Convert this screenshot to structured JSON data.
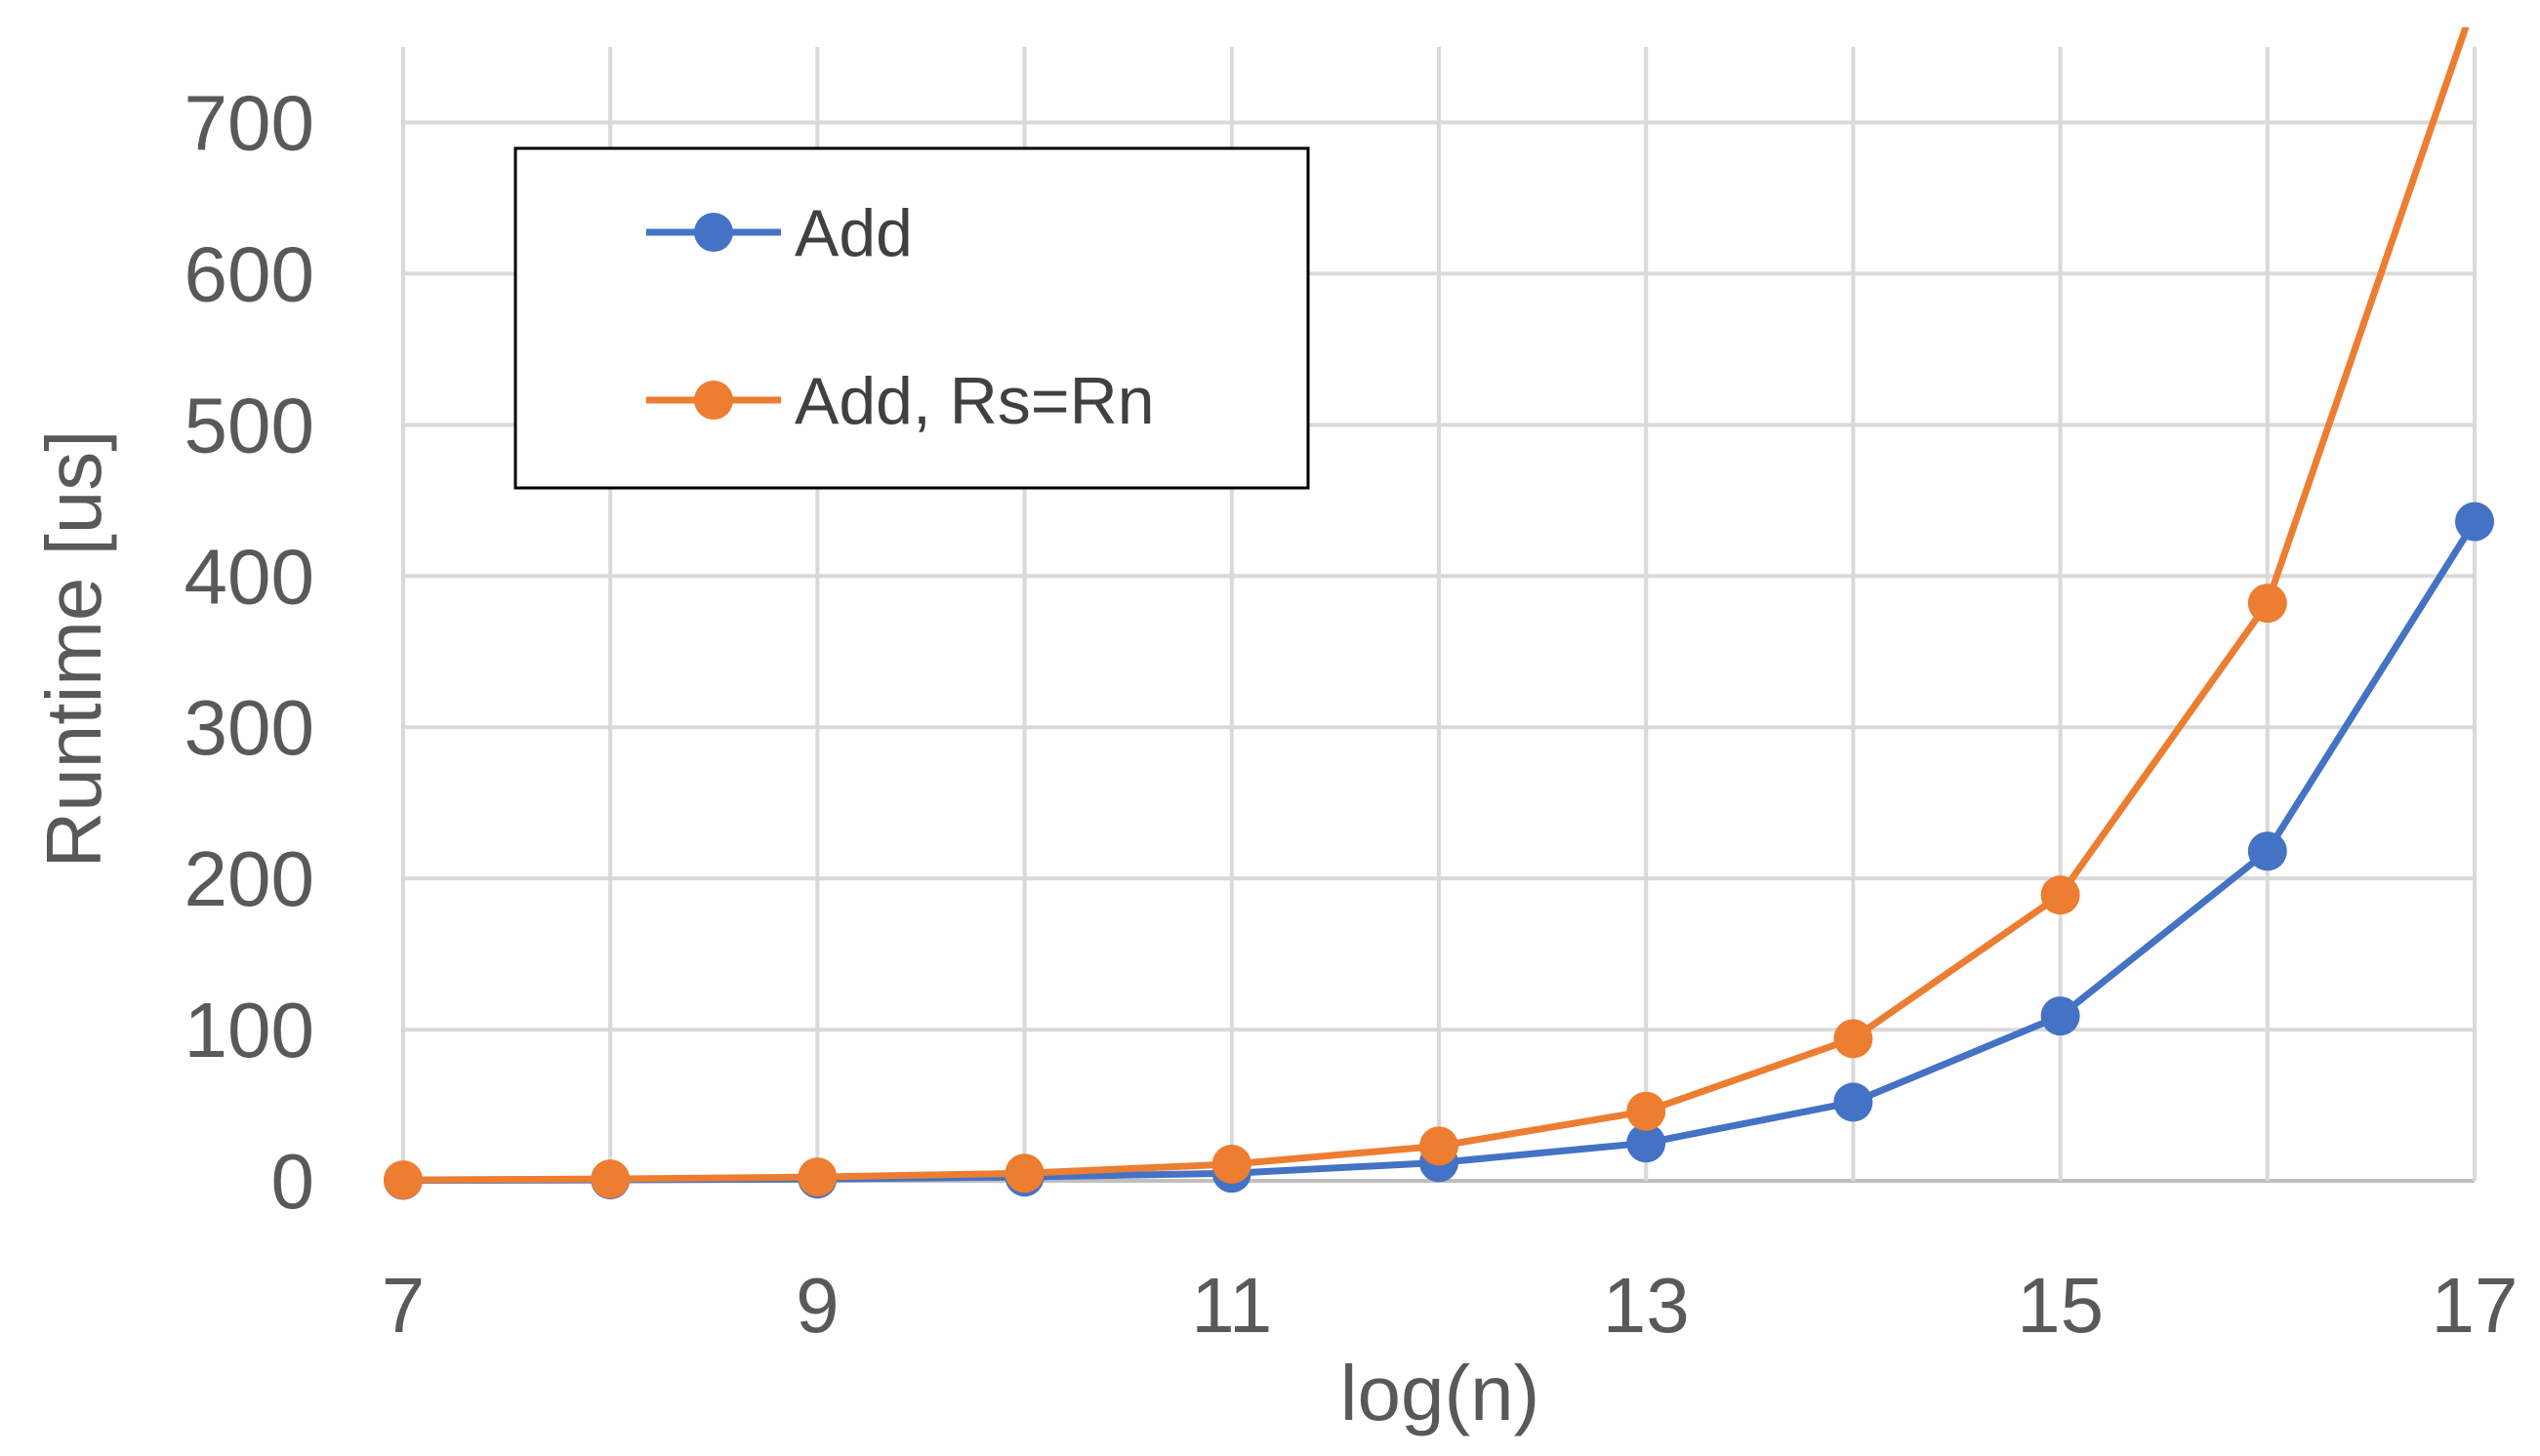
{
  "chart_data": {
    "type": "line",
    "title": "",
    "xlabel": "log(n)",
    "ylabel": "Runtime [us]",
    "x": [
      7,
      8,
      9,
      10,
      11,
      12,
      13,
      14,
      15,
      16,
      17
    ],
    "xlim": [
      7,
      17
    ],
    "ylim": [
      0,
      750
    ],
    "x_ticks": [
      7,
      9,
      11,
      13,
      15,
      17
    ],
    "y_ticks": [
      0,
      100,
      200,
      300,
      400,
      500,
      600,
      700
    ],
    "grid": true,
    "legend_position": "top-left",
    "legend_border": true,
    "series": [
      {
        "name": "Add",
        "color": "#4472C4",
        "marker": "circle",
        "values": [
          0.3,
          0.6,
          1.2,
          2.5,
          5,
          12,
          25,
          52,
          109,
          218,
          436
        ]
      },
      {
        "name": "Add, Rs=Rn",
        "color": "#ED7D31",
        "marker": "circle",
        "values": [
          0.6,
          1.2,
          2.5,
          5,
          11,
          23,
          46,
          94,
          189,
          382,
          780
        ]
      }
    ]
  }
}
